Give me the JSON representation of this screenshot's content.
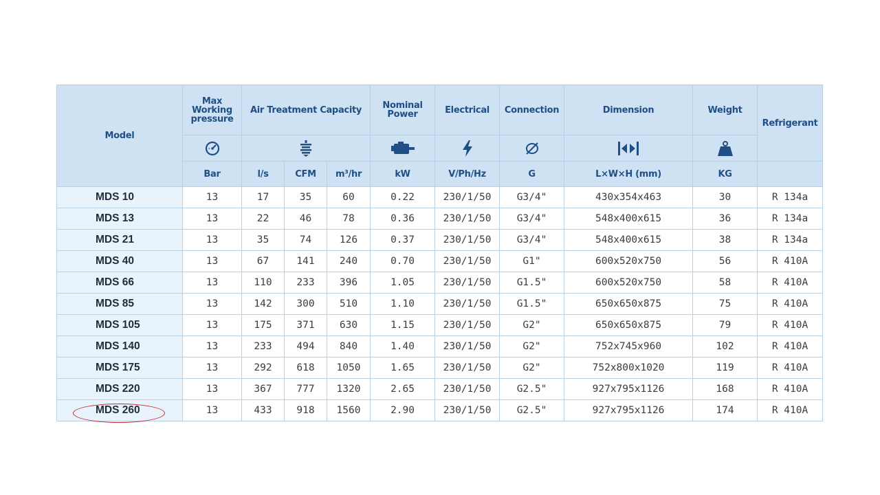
{
  "table": {
    "headers": {
      "model": "Model",
      "pressure_line1": "Max",
      "pressure_line2": "Working",
      "pressure_line3": "pressure",
      "capacity": "Air Treatment Capacity",
      "power_line1": "Nominal",
      "power_line2": "Power",
      "electrical": "Electrical",
      "connection": "Connection",
      "dimension": "Dimension",
      "weight": "Weight",
      "refrigerant": "Refrigerant"
    },
    "icons": [
      "gauge-icon",
      "filter-icon",
      "motor-icon",
      "lightning-icon",
      "diameter-icon",
      "dimension-icon",
      "weight-icon"
    ],
    "units": {
      "pressure": "Bar",
      "ls": "l/s",
      "cfm": "CFM",
      "m3hr": "m³/hr",
      "power": "kW",
      "electrical": "V/Ph/Hz",
      "connection": "G",
      "dimension": "L×W×H (mm)",
      "weight": "KG"
    },
    "rows": [
      {
        "model": "MDS 10",
        "pressure": "13",
        "ls": "17",
        "cfm": "35",
        "m3hr": "60",
        "power": "0.22",
        "electrical": "230/1/50",
        "connection": "G3/4\"",
        "dimension": "430x354x463",
        "weight": "30",
        "refrigerant": "R 134a"
      },
      {
        "model": "MDS 13",
        "pressure": "13",
        "ls": "22",
        "cfm": "46",
        "m3hr": "78",
        "power": "0.36",
        "electrical": "230/1/50",
        "connection": "G3/4\"",
        "dimension": "548x400x615",
        "weight": "36",
        "refrigerant": "R 134a"
      },
      {
        "model": "MDS 21",
        "pressure": "13",
        "ls": "35",
        "cfm": "74",
        "m3hr": "126",
        "power": "0.37",
        "electrical": "230/1/50",
        "connection": "G3/4\"",
        "dimension": "548x400x615",
        "weight": "38",
        "refrigerant": "R 134a"
      },
      {
        "model": "MDS 40",
        "pressure": "13",
        "ls": "67",
        "cfm": "141",
        "m3hr": "240",
        "power": "0.70",
        "electrical": "230/1/50",
        "connection": "G1\"",
        "dimension": "600x520x750",
        "weight": "56",
        "refrigerant": "R 410A"
      },
      {
        "model": "MDS 66",
        "pressure": "13",
        "ls": "110",
        "cfm": "233",
        "m3hr": "396",
        "power": "1.05",
        "electrical": "230/1/50",
        "connection": "G1.5\"",
        "dimension": "600x520x750",
        "weight": "58",
        "refrigerant": "R 410A"
      },
      {
        "model": "MDS 85",
        "pressure": "13",
        "ls": "142",
        "cfm": "300",
        "m3hr": "510",
        "power": "1.10",
        "electrical": "230/1/50",
        "connection": "G1.5\"",
        "dimension": "650x650x875",
        "weight": "75",
        "refrigerant": "R 410A"
      },
      {
        "model": "MDS 105",
        "pressure": "13",
        "ls": "175",
        "cfm": "371",
        "m3hr": "630",
        "power": "1.15",
        "electrical": "230/1/50",
        "connection": "G2\"",
        "dimension": "650x650x875",
        "weight": "79",
        "refrigerant": "R 410A"
      },
      {
        "model": "MDS 140",
        "pressure": "13",
        "ls": "233",
        "cfm": "494",
        "m3hr": "840",
        "power": "1.40",
        "electrical": "230/1/50",
        "connection": "G2\"",
        "dimension": "752x745x960",
        "weight": "102",
        "refrigerant": "R 410A"
      },
      {
        "model": "MDS 175",
        "pressure": "13",
        "ls": "292",
        "cfm": "618",
        "m3hr": "1050",
        "power": "1.65",
        "electrical": "230/1/50",
        "connection": "G2\"",
        "dimension": "752x800x1020",
        "weight": "119",
        "refrigerant": "R 410A"
      },
      {
        "model": "MDS 220",
        "pressure": "13",
        "ls": "367",
        "cfm": "777",
        "m3hr": "1320",
        "power": "2.65",
        "electrical": "230/1/50",
        "connection": "G2.5\"",
        "dimension": "927x795x1126",
        "weight": "168",
        "refrigerant": "R 410A"
      },
      {
        "model": "MDS 260",
        "pressure": "13",
        "ls": "433",
        "cfm": "918",
        "m3hr": "1560",
        "power": "2.90",
        "electrical": "230/1/50",
        "connection": "G2.5\"",
        "dimension": "927x795x1126",
        "weight": "174",
        "refrigerant": "R 410A"
      }
    ],
    "highlighted_model": "MDS 260",
    "colors": {
      "header_bg": "#cfe2f3",
      "header_text": "#1f4f86",
      "model_bg": "#e8f3fb",
      "highlight": "#c0282d"
    }
  }
}
